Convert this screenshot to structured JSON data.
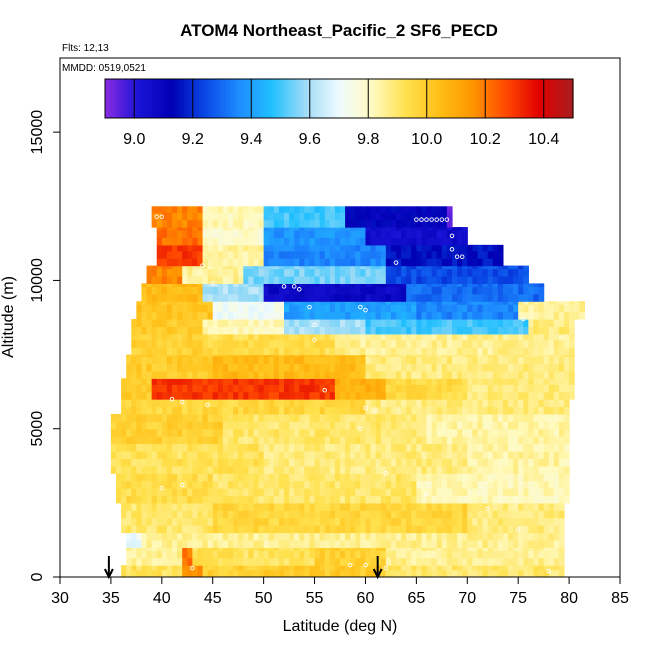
{
  "chart_data": {
    "type": "heatmap",
    "title": "ATOM4 Northeast_Pacific_2 SF6_PECD",
    "flights_label": "Flts: 12,13",
    "dates_label": "MMDD: 0519,0521",
    "xlabel": "Latitude (deg N)",
    "ylabel": "Altitude (m)",
    "xlim": [
      30,
      85
    ],
    "ylim": [
      0,
      17500
    ],
    "x_ticks": [
      "30",
      "35",
      "40",
      "45",
      "50",
      "55",
      "60",
      "65",
      "70",
      "75",
      "80",
      "85"
    ],
    "y_ticks": [
      "0",
      "5000",
      "10000",
      "15000"
    ],
    "colorbar": {
      "range": [
        8.9,
        10.5
      ],
      "ticks": [
        "9.0",
        "9.2",
        "9.4",
        "9.6",
        "9.8",
        "10.0",
        "10.2",
        "10.4"
      ],
      "colors": [
        "#8a2be2",
        "#1a14d8",
        "#0000b4",
        "#0a48e6",
        "#1e8cff",
        "#22c0ff",
        "#9fdcf6",
        "#f0fbff",
        "#fffac0",
        "#ffe14e",
        "#ffbf16",
        "#ff9600",
        "#ff4800",
        "#e00000",
        "#a81e1e"
      ]
    },
    "background_value": 9.88,
    "layers": [
      {
        "alt": [
          0,
          400
        ],
        "lat": [
          36,
          79.5
        ],
        "segments": [
          [
            36,
            42,
            9.92
          ],
          [
            42,
            44,
            10.15
          ],
          [
            44,
            50,
            9.98
          ],
          [
            50,
            62,
            10.0
          ],
          [
            62,
            79.5,
            9.9
          ]
        ]
      },
      {
        "alt": [
          400,
          1000
        ],
        "lat": [
          36.5,
          79.5
        ],
        "segments": [
          [
            36.5,
            42,
            9.86
          ],
          [
            42,
            43,
            10.2
          ],
          [
            43,
            55,
            9.92
          ],
          [
            55,
            62,
            9.98
          ],
          [
            62,
            79.5,
            9.86
          ]
        ]
      },
      {
        "alt": [
          1000,
          1500
        ],
        "lat": [
          36.5,
          79.5
        ],
        "segments": [
          [
            36.5,
            38,
            9.7
          ],
          [
            38,
            79.5,
            9.86
          ]
        ]
      },
      {
        "alt": [
          1500,
          2500
        ],
        "lat": [
          36,
          79.5
        ],
        "segments": [
          [
            36,
            45,
            9.9
          ],
          [
            45,
            70,
            9.96
          ],
          [
            70,
            79.5,
            9.88
          ]
        ]
      },
      {
        "alt": [
          2500,
          3500
        ],
        "lat": [
          35.5,
          80
        ],
        "segments": [
          [
            35.5,
            45,
            9.94
          ],
          [
            45,
            65,
            9.9
          ],
          [
            65,
            80,
            9.82
          ]
        ]
      },
      {
        "alt": [
          3500,
          4500
        ],
        "lat": [
          35,
          80
        ],
        "segments": [
          [
            35,
            50,
            9.92
          ],
          [
            50,
            70,
            9.88
          ],
          [
            70,
            80,
            9.84
          ]
        ]
      },
      {
        "alt": [
          4500,
          5500
        ],
        "lat": [
          35,
          80
        ],
        "segments": [
          [
            35,
            46,
            9.98
          ],
          [
            46,
            66,
            9.9
          ],
          [
            66,
            80,
            9.84
          ]
        ]
      },
      {
        "alt": [
          5500,
          6000
        ],
        "lat": [
          36,
          80
        ],
        "segments": [
          [
            36,
            60,
            9.96
          ],
          [
            60,
            80,
            9.88
          ]
        ]
      },
      {
        "alt": [
          6000,
          6700
        ],
        "lat": [
          36,
          80.5
        ],
        "segments": [
          [
            36,
            39,
            10.0
          ],
          [
            39,
            57,
            10.3
          ],
          [
            57,
            62,
            10.08
          ],
          [
            62,
            70,
            9.95
          ],
          [
            70,
            80.5,
            9.88
          ]
        ]
      },
      {
        "alt": [
          6700,
          7500
        ],
        "lat": [
          36.5,
          80.5
        ],
        "segments": [
          [
            36.5,
            45,
            10.0
          ],
          [
            45,
            60,
            10.05
          ],
          [
            60,
            80.5,
            9.88
          ]
        ]
      },
      {
        "alt": [
          7500,
          8200
        ],
        "lat": [
          37,
          80.5
        ],
        "segments": [
          [
            37,
            44,
            9.98
          ],
          [
            44,
            57,
            9.94
          ],
          [
            57,
            80.5,
            9.86
          ]
        ]
      },
      {
        "alt": [
          8200,
          8700
        ],
        "lat": [
          37,
          80.5
        ],
        "segments": [
          [
            37,
            44,
            10.0
          ],
          [
            44,
            52,
            9.82
          ],
          [
            52,
            60,
            9.6
          ],
          [
            60,
            76,
            9.5
          ],
          [
            76,
            80.5,
            9.88
          ]
        ]
      },
      {
        "alt": [
          8700,
          9300
        ],
        "lat": [
          37.5,
          81.5
        ],
        "segments": [
          [
            37.5,
            45,
            10.02
          ],
          [
            45,
            52,
            9.72
          ],
          [
            52,
            65,
            9.4
          ],
          [
            65,
            75,
            9.35
          ],
          [
            75,
            81.5,
            9.85
          ]
        ]
      },
      {
        "alt": [
          9300,
          9900
        ],
        "lat": [
          38,
          77.5
        ],
        "segments": [
          [
            38,
            44,
            10.05
          ],
          [
            44,
            50,
            9.6
          ],
          [
            50,
            64,
            9.08
          ],
          [
            64,
            77.5,
            9.3
          ]
        ]
      },
      {
        "alt": [
          9900,
          10500
        ],
        "lat": [
          38.5,
          76
        ],
        "segments": [
          [
            38.5,
            42,
            10.18
          ],
          [
            42,
            48,
            9.85
          ],
          [
            48,
            62,
            9.55
          ],
          [
            62,
            76,
            9.25
          ]
        ]
      },
      {
        "alt": [
          10500,
          11200
        ],
        "lat": [
          39.5,
          73.5
        ],
        "segments": [
          [
            39.5,
            44,
            10.3
          ],
          [
            44,
            50,
            9.85
          ],
          [
            50,
            62,
            9.35
          ],
          [
            62,
            73.5,
            9.15
          ]
        ]
      },
      {
        "alt": [
          11200,
          11800
        ],
        "lat": [
          39.5,
          70
        ],
        "segments": [
          [
            39.5,
            44,
            10.22
          ],
          [
            44,
            50,
            9.8
          ],
          [
            50,
            60,
            9.38
          ],
          [
            60,
            70,
            9.05
          ]
        ]
      },
      {
        "alt": [
          11800,
          12500
        ],
        "lat": [
          39,
          68.5
        ],
        "segments": [
          [
            39,
            44,
            10.18
          ],
          [
            44,
            50,
            9.82
          ],
          [
            50,
            58,
            9.5
          ],
          [
            58,
            68,
            9.12
          ],
          [
            68,
            68.5,
            8.95
          ]
        ]
      }
    ],
    "sample_points": [
      [
        39.5,
        12150
      ],
      [
        40,
        12150
      ],
      [
        65,
        12050
      ],
      [
        65.5,
        12050
      ],
      [
        66,
        12050
      ],
      [
        66.5,
        12050
      ],
      [
        67,
        12050
      ],
      [
        67.5,
        12050
      ],
      [
        68,
        12050
      ],
      [
        68.5,
        11500
      ],
      [
        68.5,
        11050
      ],
      [
        69,
        10800
      ],
      [
        69.5,
        10800
      ],
      [
        63,
        10600
      ],
      [
        52,
        9800
      ],
      [
        53,
        9800
      ],
      [
        53.5,
        9700
      ],
      [
        54.5,
        9100
      ],
      [
        59.5,
        9100
      ],
      [
        60,
        9000
      ],
      [
        55,
        8500
      ],
      [
        55,
        8000
      ],
      [
        75.5,
        8700
      ],
      [
        44,
        10500
      ],
      [
        45,
        9900
      ],
      [
        41,
        6000
      ],
      [
        42,
        5900
      ],
      [
        44.5,
        5800
      ],
      [
        60,
        5700
      ],
      [
        56,
        6300
      ],
      [
        61,
        5600
      ],
      [
        59.5,
        5000
      ],
      [
        40,
        3000
      ],
      [
        42,
        3100
      ],
      [
        62,
        3500
      ],
      [
        66,
        2800
      ],
      [
        72,
        2300
      ],
      [
        75,
        1600
      ],
      [
        60,
        400
      ],
      [
        58.5,
        400
      ],
      [
        43,
        300
      ],
      [
        62,
        300
      ],
      [
        78,
        200
      ]
    ],
    "markers": [
      {
        "lat": 34.8,
        "direction": "down"
      },
      {
        "lat": 61.2,
        "direction": "down"
      }
    ]
  }
}
